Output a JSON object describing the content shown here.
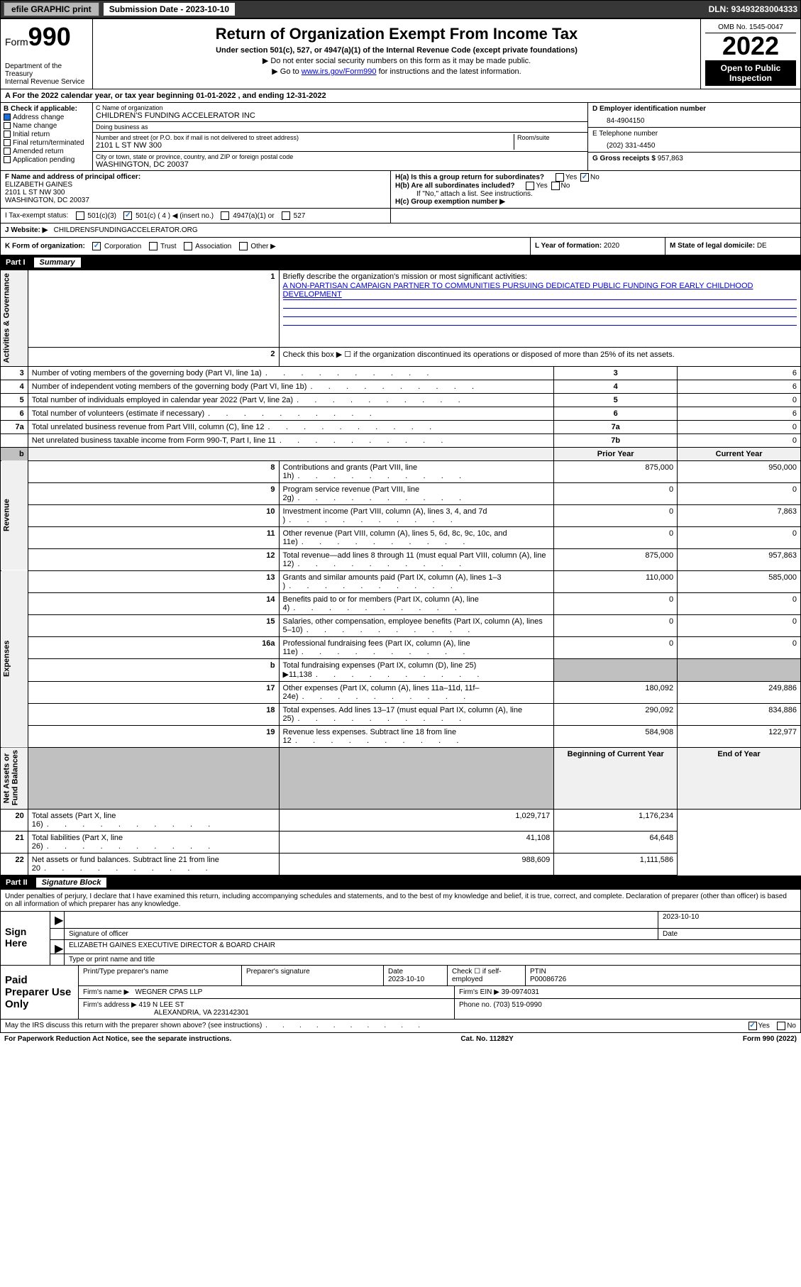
{
  "topbar": {
    "efile": "efile GRAPHIC print",
    "submission_label": "Submission Date - 2023-10-10",
    "dln": "DLN: 93493283004333"
  },
  "header": {
    "form_word": "Form",
    "form_num": "990",
    "dept": "Department of the Treasury\nInternal Revenue Service",
    "title": "Return of Organization Exempt From Income Tax",
    "sub1": "Under section 501(c), 527, or 4947(a)(1) of the Internal Revenue Code (except private foundations)",
    "sub2": "▶ Do not enter social security numbers on this form as it may be made public.",
    "sub3_pre": "▶ Go to ",
    "sub3_link": "www.irs.gov/Form990",
    "sub3_post": " for instructions and the latest information.",
    "omb": "OMB No. 1545-0047",
    "year": "2022",
    "inspect": "Open to Public Inspection"
  },
  "lineA": "A For the 2022 calendar year, or tax year beginning 01-01-2022    , and ending 12-31-2022",
  "boxB": {
    "label": "B Check if applicable:",
    "items": [
      "Address change",
      "Name change",
      "Initial return",
      "Final return/terminated",
      "Amended return",
      "Application pending"
    ],
    "checked_idx": 0
  },
  "boxC": {
    "name_lbl": "C Name of organization",
    "name": "CHILDREN'S FUNDING ACCELERATOR INC",
    "dba_lbl": "Doing business as",
    "dba": "",
    "addr_lbl": "Number and street (or P.O. box if mail is not delivered to street address)",
    "room_lbl": "Room/suite",
    "addr": "2101 L ST NW 300",
    "city_lbl": "City or town, state or province, country, and ZIP or foreign postal code",
    "city": "WASHINGTON, DC  20037"
  },
  "boxD": {
    "lbl": "D Employer identification number",
    "val": "84-4904150"
  },
  "boxE": {
    "lbl": "E Telephone number",
    "val": "(202) 331-4450"
  },
  "boxG": {
    "lbl": "G Gross receipts $",
    "val": "957,863"
  },
  "boxF": {
    "lbl": "F Name and address of principal officer:",
    "name": "ELIZABETH GAINES",
    "addr1": "2101 L ST NW 300",
    "addr2": "WASHINGTON, DC  20037"
  },
  "boxH": {
    "ha_lbl": "H(a)  Is this a group return for subordinates?",
    "ha_answer_no": true,
    "hb_lbl": "H(b)  Are all subordinates included?",
    "hb_note": "If \"No,\" attach a list. See instructions.",
    "hc_lbl": "H(c)  Group exemption number ▶"
  },
  "boxI": {
    "lbl": "I  Tax-exempt status:",
    "opts": [
      "501(c)(3)",
      "501(c) ( 4 ) ◀ (insert no.)",
      "4947(a)(1) or",
      "527"
    ],
    "checked_idx": 1
  },
  "boxJ": {
    "lbl": "J  Website: ▶",
    "val": "CHILDRENSFUNDINGACCELERATOR.ORG"
  },
  "boxK": {
    "lbl": "K Form of organization:",
    "opts": [
      "Corporation",
      "Trust",
      "Association",
      "Other ▶"
    ],
    "checked_idx": 0
  },
  "boxL": {
    "lbl": "L Year of formation: ",
    "val": "2020"
  },
  "boxM": {
    "lbl": "M State of legal domicile: ",
    "val": "DE"
  },
  "partI": {
    "num": "Part I",
    "title": "Summary"
  },
  "summary": {
    "line1_lbl": "Briefly describe the organization's mission or most significant activities:",
    "line1_val": "A NON-PARTISAN CAMPAIGN PARTNER TO COMMUNITIES PURSUING DEDICATED PUBLIC FUNDING FOR EARLY CHILDHOOD DEVELOPMENT",
    "line2_lbl": "Check this box ▶ ☐  if the organization discontinued its operations or disposed of more than 25% of its net assets.",
    "governance_rows": [
      {
        "n": "3",
        "t": "Number of voting members of the governing body (Part VI, line 1a)",
        "box": "3",
        "v": "6"
      },
      {
        "n": "4",
        "t": "Number of independent voting members of the governing body (Part VI, line 1b)",
        "box": "4",
        "v": "6"
      },
      {
        "n": "5",
        "t": "Total number of individuals employed in calendar year 2022 (Part V, line 2a)",
        "box": "5",
        "v": "0"
      },
      {
        "n": "6",
        "t": "Total number of volunteers (estimate if necessary)",
        "box": "6",
        "v": "6"
      },
      {
        "n": "7a",
        "t": "Total unrelated business revenue from Part VIII, column (C), line 12",
        "box": "7a",
        "v": "0"
      },
      {
        "n": "",
        "t": "Net unrelated business taxable income from Form 990-T, Part I, line 11",
        "box": "7b",
        "v": "0"
      }
    ],
    "col_prior": "Prior Year",
    "col_current": "Current Year",
    "revenue_rows": [
      {
        "n": "8",
        "t": "Contributions and grants (Part VIII, line 1h)",
        "p": "875,000",
        "c": "950,000"
      },
      {
        "n": "9",
        "t": "Program service revenue (Part VIII, line 2g)",
        "p": "0",
        "c": "0"
      },
      {
        "n": "10",
        "t": "Investment income (Part VIII, column (A), lines 3, 4, and 7d )",
        "p": "0",
        "c": "7,863"
      },
      {
        "n": "11",
        "t": "Other revenue (Part VIII, column (A), lines 5, 6d, 8c, 9c, 10c, and 11e)",
        "p": "0",
        "c": "0"
      },
      {
        "n": "12",
        "t": "Total revenue—add lines 8 through 11 (must equal Part VIII, column (A), line 12)",
        "p": "875,000",
        "c": "957,863"
      }
    ],
    "expense_rows": [
      {
        "n": "13",
        "t": "Grants and similar amounts paid (Part IX, column (A), lines 1–3 )",
        "p": "110,000",
        "c": "585,000"
      },
      {
        "n": "14",
        "t": "Benefits paid to or for members (Part IX, column (A), line 4)",
        "p": "0",
        "c": "0"
      },
      {
        "n": "15",
        "t": "Salaries, other compensation, employee benefits (Part IX, column (A), lines 5–10)",
        "p": "0",
        "c": "0"
      },
      {
        "n": "16a",
        "t": "Professional fundraising fees (Part IX, column (A), line 11e)",
        "p": "0",
        "c": "0"
      },
      {
        "n": "b",
        "t": "Total fundraising expenses (Part IX, column (D), line 25) ▶11,138",
        "p": "",
        "c": "",
        "grey": true
      },
      {
        "n": "17",
        "t": "Other expenses (Part IX, column (A), lines 11a–11d, 11f–24e)",
        "p": "180,092",
        "c": "249,886"
      },
      {
        "n": "18",
        "t": "Total expenses. Add lines 13–17 (must equal Part IX, column (A), line 25)",
        "p": "290,092",
        "c": "834,886"
      },
      {
        "n": "19",
        "t": "Revenue less expenses. Subtract line 18 from line 12",
        "p": "584,908",
        "c": "122,977"
      }
    ],
    "col_begin": "Beginning of Current Year",
    "col_end": "End of Year",
    "net_rows": [
      {
        "n": "20",
        "t": "Total assets (Part X, line 16)",
        "p": "1,029,717",
        "c": "1,176,234"
      },
      {
        "n": "21",
        "t": "Total liabilities (Part X, line 26)",
        "p": "41,108",
        "c": "64,648"
      },
      {
        "n": "22",
        "t": "Net assets or fund balances. Subtract line 21 from line 20",
        "p": "988,609",
        "c": "1,111,586"
      }
    ],
    "vlabels": {
      "gov": "Activities & Governance",
      "rev": "Revenue",
      "exp": "Expenses",
      "net": "Net Assets or\nFund Balances"
    }
  },
  "partII": {
    "num": "Part II",
    "title": "Signature Block",
    "decl": "Under penalties of perjury, I declare that I have examined this return, including accompanying schedules and statements, and to the best of my knowledge and belief, it is true, correct, and complete. Declaration of preparer (other than officer) is based on all information of which preparer has any knowledge."
  },
  "sign": {
    "here": "Sign Here",
    "sig_lbl": "Signature of officer",
    "date_lbl": "Date",
    "date_val": "2023-10-10",
    "name_lbl": "Type or print name and title",
    "name_val": "ELIZABETH GAINES  EXECUTIVE DIRECTOR & BOARD CHAIR"
  },
  "paid": {
    "title": "Paid Preparer Use Only",
    "r1": {
      "c1": "Print/Type preparer's name",
      "c2": "Preparer's signature",
      "c3_lbl": "Date",
      "c3_val": "2023-10-10",
      "c4": "Check ☐ if self-employed",
      "c5_lbl": "PTIN",
      "c5_val": "P00086726"
    },
    "r2": {
      "lbl": "Firm's name    ▶",
      "val": "WEGNER CPAS LLP",
      "ein_lbl": "Firm's EIN ▶",
      "ein_val": "39-0974031"
    },
    "r3": {
      "lbl": "Firm's address ▶",
      "val1": "419 N LEE ST",
      "val2": "ALEXANDRIA, VA  223142301",
      "ph_lbl": "Phone no.",
      "ph_val": "(703) 519-0990"
    }
  },
  "may_discuss": "May the IRS discuss this return with the preparer shown above? (see instructions)",
  "may_yes": true,
  "footer": {
    "left": "For Paperwork Reduction Act Notice, see the separate instructions.",
    "mid": "Cat. No. 11282Y",
    "right": "Form 990 (2022)"
  }
}
